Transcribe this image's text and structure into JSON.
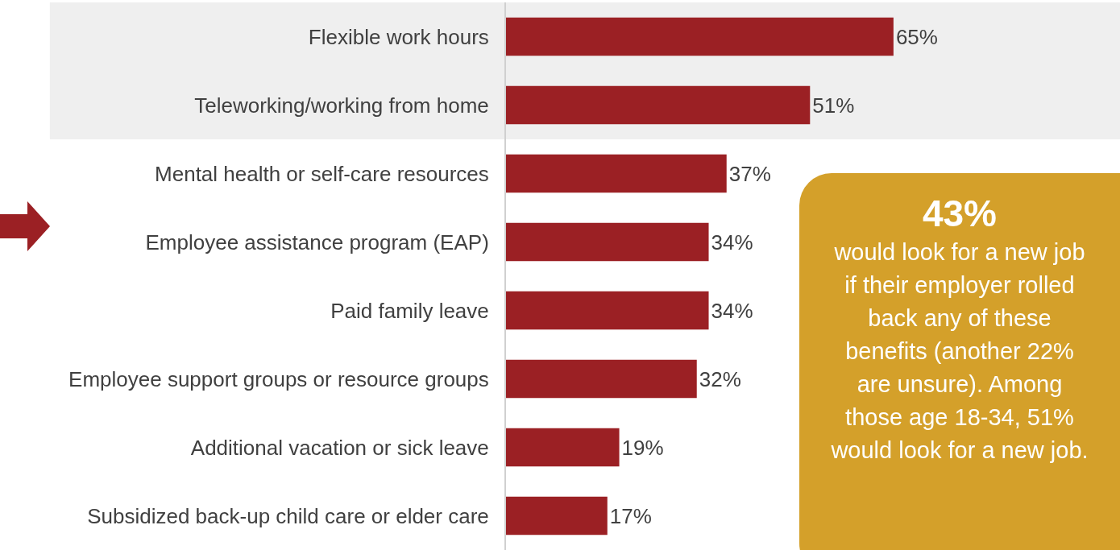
{
  "chart_data": {
    "type": "bar",
    "orientation": "horizontal",
    "categories": [
      "Flexible work hours",
      "Teleworking/working from home",
      "Mental health or self-care resources",
      "Employee assistance program (EAP)",
      "Paid family leave",
      "Employee support groups or resource groups",
      "Additional vacation or sick leave",
      "Subsidized back-up child care or elder care"
    ],
    "values": [
      65,
      51,
      37,
      34,
      34,
      32,
      19,
      17
    ],
    "value_labels": [
      "65%",
      "51%",
      "37%",
      "34%",
      "34%",
      "32%",
      "19%",
      "17%"
    ],
    "color": "#9b2024",
    "xlim": [
      0,
      103
    ],
    "tick_labels": "y",
    "legend": false,
    "bands": [
      {
        "axis": "y",
        "from": "Flexible work hours",
        "to": "Teleworking/working from home",
        "color": "#efefef"
      }
    ],
    "annotations": [
      "43%",
      "would look for a new job if their employer rolled back any of these benefits (another 22% are unsure). Among those age 18-34, 51% would look for a new job."
    ]
  }
}
